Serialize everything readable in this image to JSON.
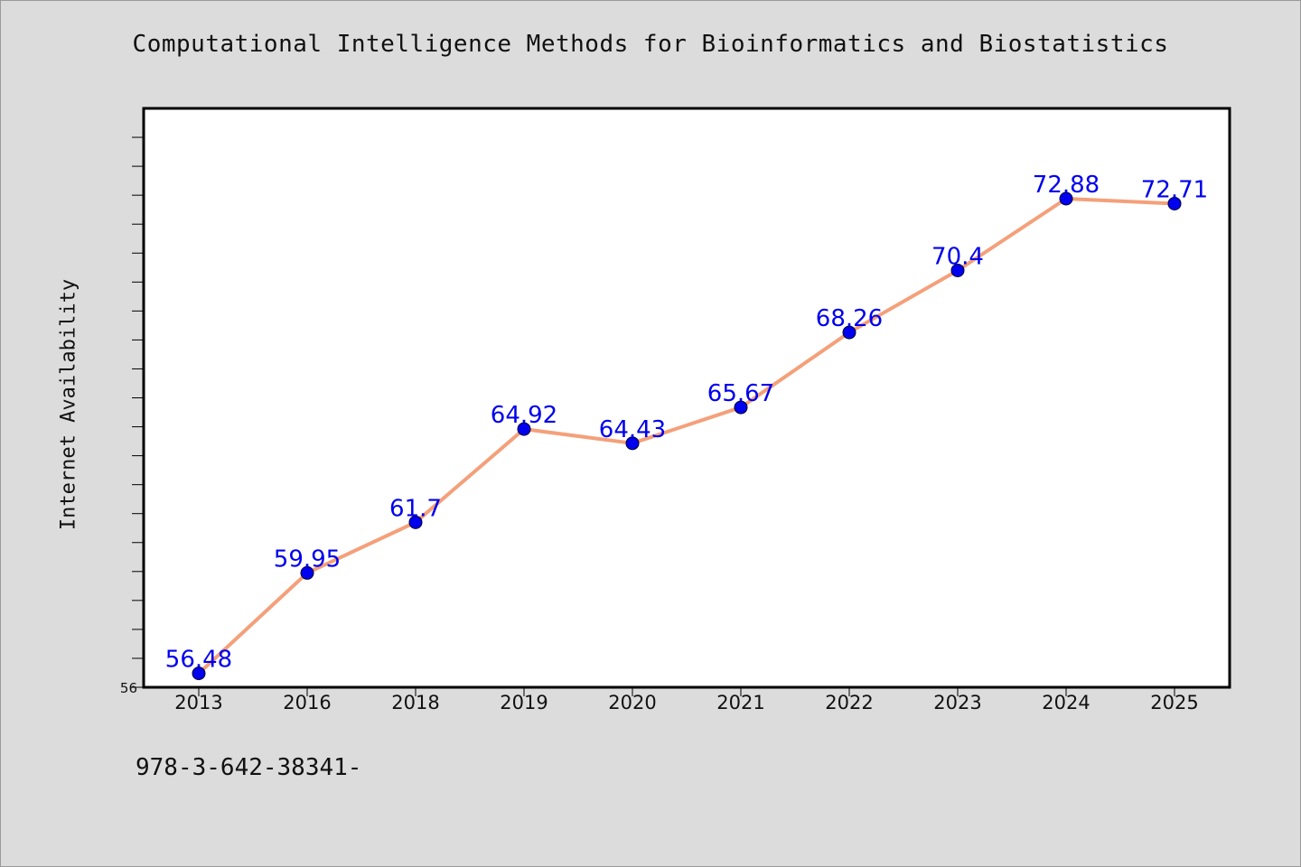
{
  "chart_data": {
    "type": "line",
    "title": "Computational Intelligence Methods for Bioinformatics and Biostatistics",
    "xlabel": "",
    "ylabel": "Internet Availability",
    "categories": [
      "2013",
      "2016",
      "2018",
      "2019",
      "2020",
      "2021",
      "2022",
      "2023",
      "2024",
      "2025"
    ],
    "series": [
      {
        "values": [
          56.48,
          59.95,
          61.7,
          64.92,
          64.43,
          65.67,
          68.26,
          70.4,
          72.88,
          72.71
        ],
        "labels": [
          "56.48",
          "59.95",
          "61.7",
          "64.92",
          "64.43",
          "65.67",
          "68.26",
          "70.4",
          "72.88",
          "72.71"
        ]
      }
    ],
    "y_tick_labels": [
      "56"
    ],
    "ylim": [
      56,
      76
    ],
    "grid": false,
    "colors": {
      "line": "#f4a07a",
      "marker": "#0000ee",
      "data_label": "#0000ee"
    }
  },
  "footnote": "978-3-642-38341-"
}
